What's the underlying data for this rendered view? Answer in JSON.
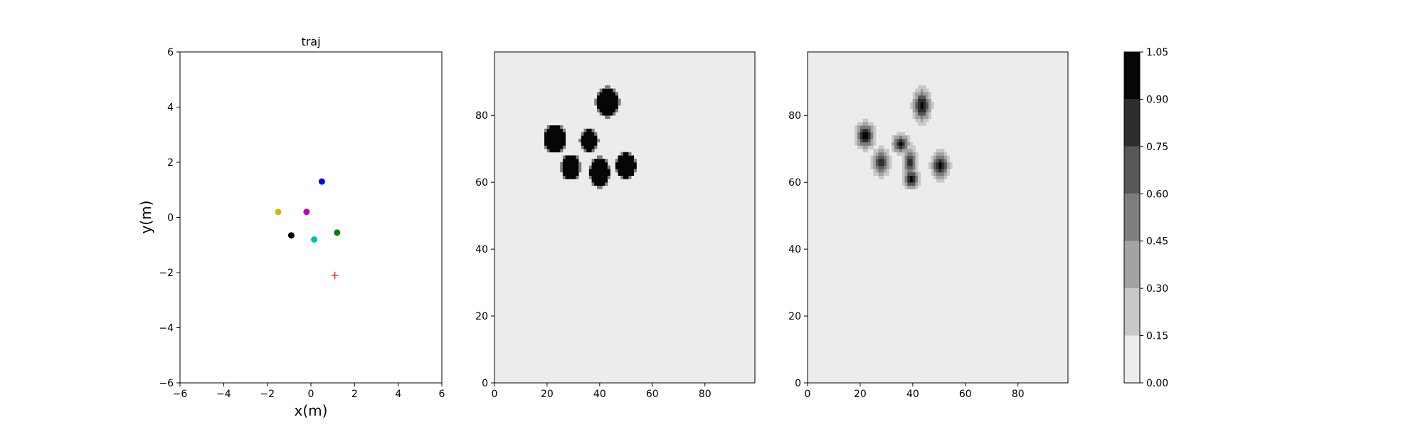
{
  "chart_data": [
    {
      "type": "scatter",
      "title": "traj",
      "xlabel": "x(m)",
      "ylabel": "y(m)",
      "xlim": [
        -6,
        6
      ],
      "ylim": [
        -6,
        6
      ],
      "xticks": [
        "−6",
        "−4",
        "−2",
        "0",
        "2",
        "4",
        "6"
      ],
      "yticks": [
        "−6",
        "−4",
        "−2",
        "0",
        "2",
        "4",
        "6"
      ],
      "grid": false,
      "points": [
        {
          "x": 0.5,
          "y": 1.3,
          "color": "#0000ff",
          "marker": "circle"
        },
        {
          "x": -1.5,
          "y": 0.2,
          "color": "#bfbf00",
          "marker": "circle"
        },
        {
          "x": -0.2,
          "y": 0.2,
          "color": "#bf00bf",
          "marker": "circle"
        },
        {
          "x": 1.2,
          "y": -0.55,
          "color": "#008000",
          "marker": "circle"
        },
        {
          "x": -0.9,
          "y": -0.65,
          "color": "#000000",
          "marker": "circle"
        },
        {
          "x": 0.15,
          "y": -0.8,
          "color": "#00bfbf",
          "marker": "circle"
        }
      ],
      "target": {
        "x": 1.1,
        "y": -2.1,
        "color": "#ff0000",
        "marker": "plus"
      }
    },
    {
      "type": "heatmap",
      "title": "",
      "xlim": [
        0,
        99
      ],
      "ylim": [
        0,
        99
      ],
      "xticks": [
        "0",
        "20",
        "40",
        "60",
        "80"
      ],
      "yticks": [
        "0",
        "20",
        "40",
        "60",
        "80"
      ],
      "blobs": [
        {
          "x": 43,
          "y": 84,
          "rx": 4.2,
          "ry": 4.2,
          "peak": 1.0,
          "sharp": true
        },
        {
          "x": 23,
          "y": 73,
          "rx": 3.8,
          "ry": 4.0,
          "peak": 1.0,
          "sharp": true
        },
        {
          "x": 36,
          "y": 72.5,
          "rx": 3.2,
          "ry": 3.2,
          "peak": 1.0,
          "sharp": true
        },
        {
          "x": 29,
          "y": 64.5,
          "rx": 3.4,
          "ry": 3.6,
          "peak": 1.0,
          "sharp": true
        },
        {
          "x": 40,
          "y": 63,
          "rx": 3.6,
          "ry": 4.2,
          "peak": 1.0,
          "sharp": true
        },
        {
          "x": 50,
          "y": 65,
          "rx": 3.6,
          "ry": 3.6,
          "peak": 1.0,
          "sharp": true
        }
      ]
    },
    {
      "type": "heatmap",
      "title": "",
      "xlim": [
        0,
        99
      ],
      "ylim": [
        0,
        99
      ],
      "xticks": [
        "0",
        "20",
        "40",
        "60",
        "80"
      ],
      "yticks": [
        "0",
        "20",
        "40",
        "60",
        "80"
      ],
      "blobs": [
        {
          "x": 43.5,
          "y": 83,
          "rx": 2.8,
          "ry": 4.0,
          "peak": 1.0,
          "sharp": false
        },
        {
          "x": 22,
          "y": 74,
          "rx": 3.0,
          "ry": 3.2,
          "peak": 1.0,
          "sharp": false
        },
        {
          "x": 28,
          "y": 66,
          "rx": 2.8,
          "ry": 3.2,
          "peak": 0.92,
          "sharp": false
        },
        {
          "x": 35.5,
          "y": 71.5,
          "rx": 2.8,
          "ry": 2.4,
          "peak": 0.92,
          "sharp": false
        },
        {
          "x": 39,
          "y": 66,
          "rx": 2.2,
          "ry": 4.2,
          "peak": 0.82,
          "sharp": false
        },
        {
          "x": 39.5,
          "y": 61,
          "rx": 2.6,
          "ry": 2.4,
          "peak": 1.0,
          "sharp": false
        },
        {
          "x": 50.5,
          "y": 65,
          "rx": 2.8,
          "ry": 3.2,
          "peak": 1.0,
          "sharp": false
        }
      ]
    }
  ],
  "colorbar": {
    "levels": [
      0.0,
      0.15,
      0.3,
      0.45,
      0.6,
      0.75,
      0.9,
      1.05
    ],
    "tick_labels": [
      "0.00",
      "0.15",
      "0.30",
      "0.45",
      "0.60",
      "0.75",
      "0.90",
      "1.05"
    ],
    "colors": [
      "#ececec",
      "#c8c8c8",
      "#a3a3a3",
      "#7d7d7d",
      "#575757",
      "#2e2e2e",
      "#060606"
    ]
  }
}
